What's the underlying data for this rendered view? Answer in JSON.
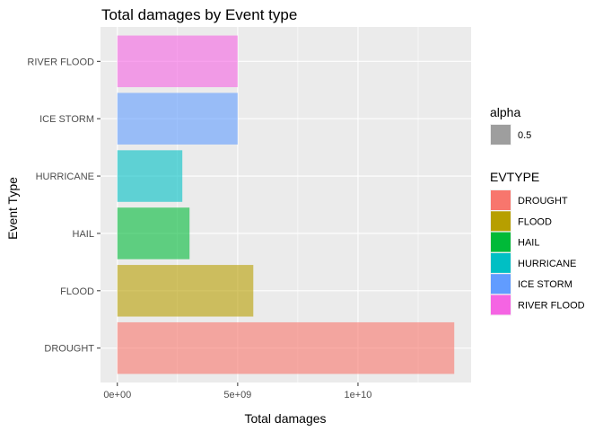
{
  "chart_data": {
    "type": "bar",
    "orientation": "horizontal",
    "title": "Total damages by Event type",
    "xlabel": "Total damages",
    "ylabel": "Event Type",
    "categories": [
      "DROUGHT",
      "FLOOD",
      "HAIL",
      "HURRICANE",
      "ICE STORM",
      "RIVER FLOOD"
    ],
    "values": [
      14000000000,
      5650000000,
      3000000000,
      2700000000,
      5000000000,
      5000000000
    ],
    "xlim": [
      -700000000,
      14700000000
    ],
    "x_ticks": [
      0,
      5000000000,
      10000000000
    ],
    "x_tick_labels": [
      "0e+00",
      "5e+09",
      "1e+10"
    ],
    "colors": [
      "#F8766D",
      "#B79F00",
      "#00BA38",
      "#00BFC4",
      "#619CFF",
      "#F564E3"
    ],
    "bar_alpha": 0.6,
    "grid": true,
    "panel_background": "#EBEBEB",
    "legend_position": "right",
    "legend_alpha": {
      "title": "alpha",
      "value_label": "0.5",
      "color": "#9E9E9E"
    },
    "legend_fill": {
      "title": "EVTYPE"
    }
  }
}
